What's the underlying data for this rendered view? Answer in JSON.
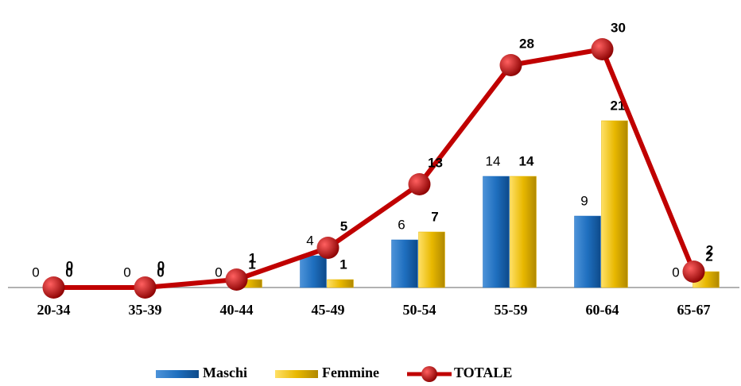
{
  "chart_data": {
    "type": "bar",
    "categories": [
      "20-34",
      "35-39",
      "40-44",
      "45-49",
      "50-54",
      "55-59",
      "60-64",
      "65-67"
    ],
    "series": [
      {
        "name": "Maschi",
        "color": "#1f6fbf",
        "values": [
          0,
          0,
          0,
          4,
          6,
          14,
          9,
          0
        ]
      },
      {
        "name": "Femmine",
        "color": "#e8b800",
        "values": [
          0,
          0,
          1,
          1,
          7,
          14,
          21,
          2
        ]
      },
      {
        "name": "TOTALE",
        "type": "line",
        "color": "#c00000",
        "values": [
          0,
          0,
          1,
          5,
          13,
          28,
          30,
          2
        ]
      }
    ],
    "ylim": [
      0,
      32
    ],
    "legend": "bottom"
  }
}
